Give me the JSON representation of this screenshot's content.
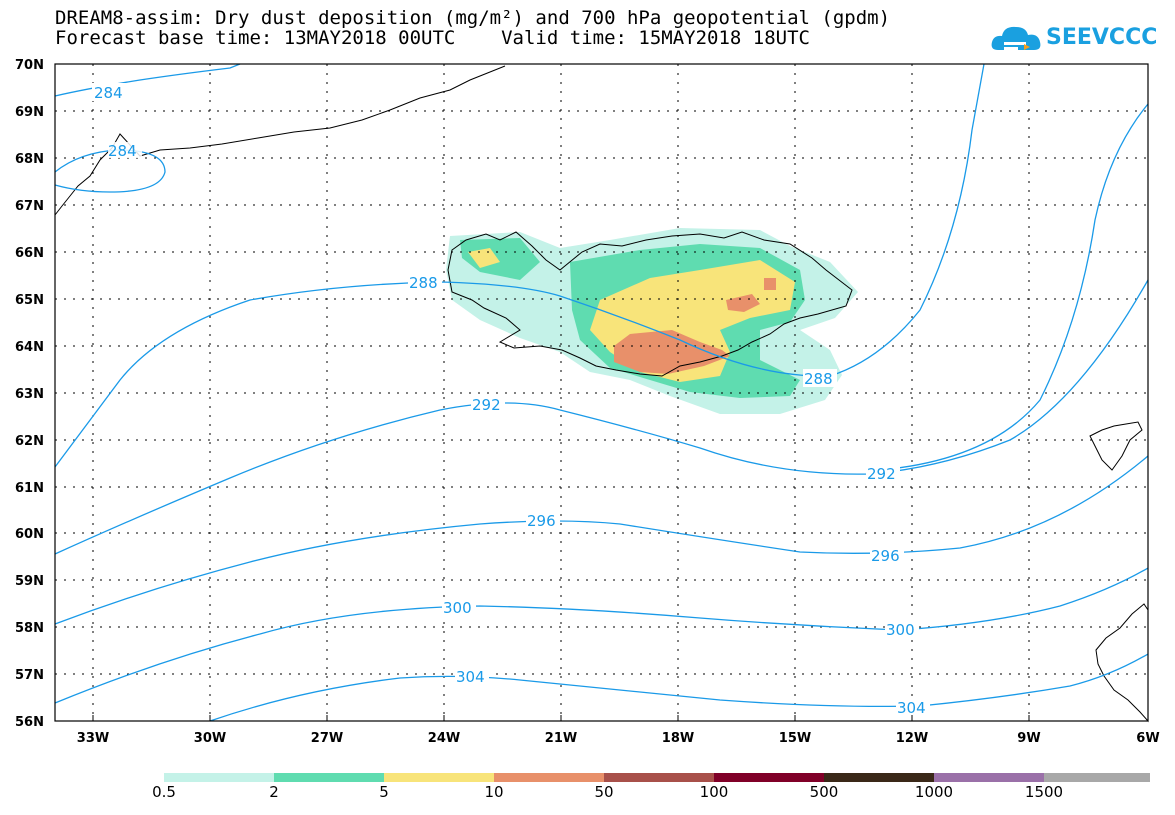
{
  "title": {
    "line1": "DREAM8-assim: Dry dust deposition (mg/m²) and 700 hPa geopotential (gpdm)",
    "line2": "Forecast base time: 13MAY2018 00UTC    Valid time: 15MAY2018 18UTC"
  },
  "logo": {
    "text": "SEEVCCC",
    "icon": "cloud-icon",
    "color": "#1aa0e0"
  },
  "axes": {
    "lat_labels": [
      "70N",
      "69N",
      "68N",
      "67N",
      "66N",
      "65N",
      "64N",
      "63N",
      "62N",
      "61N",
      "60N",
      "59N",
      "58N",
      "57N",
      "56N"
    ],
    "lon_labels": [
      "33W",
      "30W",
      "27W",
      "24W",
      "21W",
      "18W",
      "15W",
      "12W",
      "9W",
      "6W"
    ]
  },
  "contours": {
    "color": "#1a9ae8",
    "labels": [
      "284",
      "284",
      "288",
      "288",
      "292",
      "292",
      "296",
      "296",
      "300",
      "300",
      "304",
      "304"
    ]
  },
  "colorbar": {
    "labels": [
      "0.5",
      "2",
      "5",
      "10",
      "50",
      "100",
      "500",
      "1000",
      "1500"
    ],
    "colors": [
      "#c4f2e8",
      "#5fdcb0",
      "#f8e47a",
      "#e8906a",
      "#a8504a",
      "#800028",
      "#3a2818",
      "#9a70a8",
      "#a8a8a8"
    ]
  }
}
